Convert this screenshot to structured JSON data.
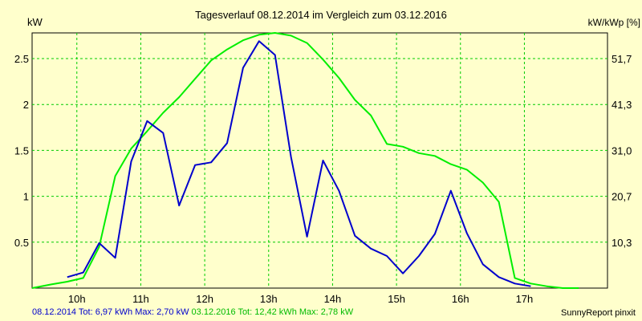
{
  "chart_data": {
    "type": "line",
    "title": "Tagesverlauf 08.12.2014 im Vergleich zum 03.12.2016",
    "ylabel": "kW",
    "y2label": "kW/kWp [%]",
    "ylim": [
      0,
      2.78
    ],
    "xlim": [
      9.3,
      18.3
    ],
    "grid": true,
    "y_ticks": [
      0.5,
      1,
      1.5,
      2,
      2.5
    ],
    "y_tick_labels": [
      "0.5",
      "1",
      "1.5",
      "2",
      "2.5"
    ],
    "y2_ticks": [
      0.5,
      1,
      1.5,
      2,
      2.5
    ],
    "y2_tick_labels": [
      "10,3",
      "20,7",
      "31,0",
      "41,3",
      "51,7"
    ],
    "x_ticks": [
      10,
      11,
      12,
      13,
      14,
      15,
      16,
      17
    ],
    "x_tick_labels": [
      "10h",
      "11h",
      "12h",
      "13h",
      "14h",
      "15h",
      "16h",
      "17h"
    ],
    "series": [
      {
        "name": "08.12.2014",
        "color": "#0000cc",
        "x": [
          9.85,
          10.1,
          10.35,
          10.6,
          10.85,
          11.1,
          11.35,
          11.6,
          11.85,
          12.1,
          12.35,
          12.6,
          12.85,
          13.1,
          13.35,
          13.6,
          13.85,
          14.1,
          14.35,
          14.6,
          14.85,
          15.1,
          15.35,
          15.6,
          15.85,
          16.1,
          16.35,
          16.6,
          16.85,
          17.1
        ],
        "values": [
          0.12,
          0.17,
          0.49,
          0.33,
          1.38,
          1.82,
          1.69,
          0.9,
          1.34,
          1.37,
          1.58,
          2.4,
          2.69,
          2.54,
          1.43,
          0.56,
          1.39,
          1.06,
          0.57,
          0.43,
          0.35,
          0.16,
          0.35,
          0.59,
          1.06,
          0.6,
          0.26,
          0.12,
          0.05,
          0.02
        ]
      },
      {
        "name": "03.12.2016",
        "color": "#00ee00",
        "x": [
          9.3,
          9.6,
          9.85,
          10.1,
          10.35,
          10.6,
          10.85,
          11.1,
          11.35,
          11.6,
          11.85,
          12.1,
          12.35,
          12.6,
          12.85,
          13.1,
          13.35,
          13.6,
          13.85,
          14.1,
          14.35,
          14.6,
          14.85,
          15.1,
          15.35,
          15.6,
          15.85,
          16.1,
          16.35,
          16.6,
          16.85,
          17.1,
          17.35,
          17.6,
          17.85
        ],
        "values": [
          0.0,
          0.04,
          0.07,
          0.11,
          0.45,
          1.22,
          1.52,
          1.71,
          1.91,
          2.08,
          2.28,
          2.48,
          2.6,
          2.7,
          2.76,
          2.78,
          2.75,
          2.67,
          2.49,
          2.29,
          2.05,
          1.88,
          1.57,
          1.54,
          1.47,
          1.44,
          1.35,
          1.29,
          1.15,
          0.94,
          0.11,
          0.05,
          0.02,
          0.0,
          0.0
        ]
      }
    ],
    "legend": {
      "entries": [
        {
          "text": "08.12.2014 Tot: 6,97 kWh Max: 2,70 kW",
          "color": "#0000cc"
        },
        {
          "text": "03.12.2016 Tot: 12,42 kWh Max: 2,78 kW",
          "color": "#00cc00"
        }
      ],
      "placement": "bottom-left"
    },
    "credit": "SunnyReport pinxit"
  }
}
